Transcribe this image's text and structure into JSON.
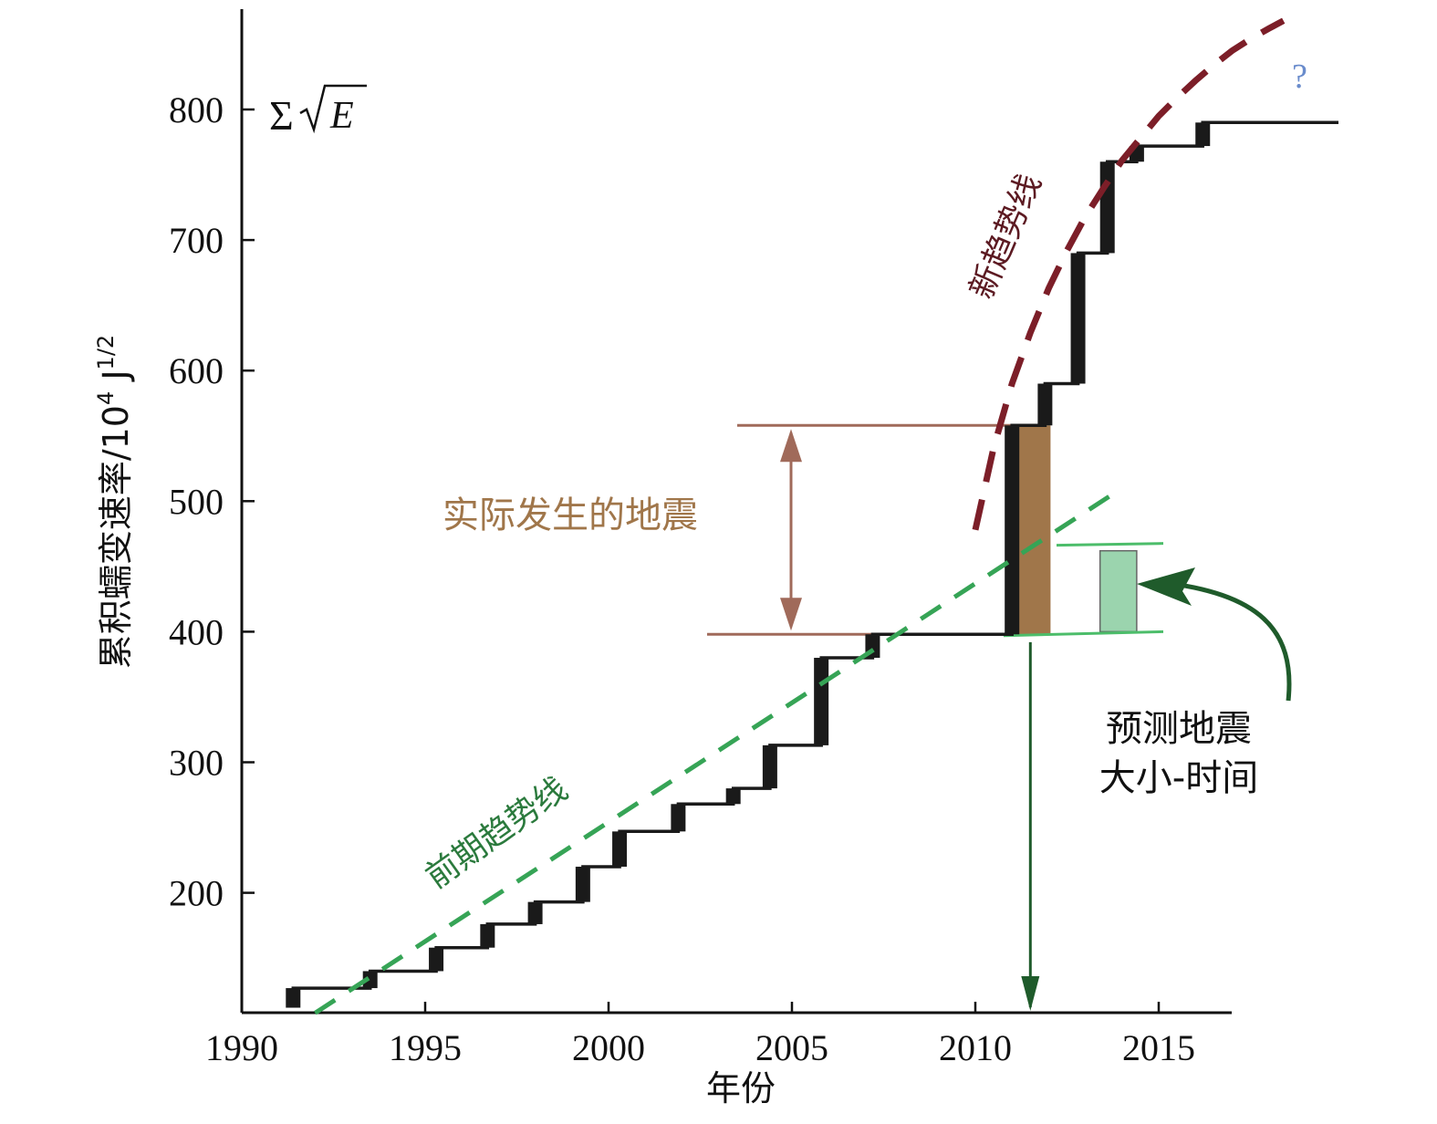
{
  "chart_data": {
    "type": "line",
    "xlabel": "年份",
    "ylabel": "累积蠕变速率/10",
    "ylabel_exp1": "4",
    "ylabel_unit": " J",
    "ylabel_exp2": "1/2",
    "formula": {
      "sigma": "Σ",
      "radicand": "E"
    },
    "xlim": [
      1990,
      2017
    ],
    "ylim": [
      110,
      870
    ],
    "x_ticks": [
      1990,
      1995,
      2000,
      2005,
      2010,
      2015
    ],
    "y_ticks": [
      200,
      300,
      400,
      500,
      600,
      700,
      800
    ],
    "grid": false,
    "series": [
      {
        "style": "step",
        "color": "#1a1a1a",
        "x": [
          1991.4,
          1991.4,
          1993.5,
          1993.5,
          1995.3,
          1995.3,
          1996.7,
          1996.7,
          1998.0,
          1998.0,
          1999.3,
          1999.3,
          2000.3,
          2000.3,
          2001.9,
          2001.9,
          2003.4,
          2003.4,
          2004.4,
          2004.4,
          2005.8,
          2005.8,
          2007.2,
          2007.2,
          2011.0,
          2011.0,
          2011.9,
          2011.9,
          2012.8,
          2012.8,
          2013.6,
          2013.6,
          2014.4,
          2014.4,
          2016.2,
          2016.2,
          2019.9
        ],
        "y": [
          112,
          127,
          127,
          140,
          140,
          158,
          158,
          176,
          176,
          193,
          193,
          220,
          220,
          247,
          247,
          268,
          268,
          280,
          280,
          313,
          313,
          380,
          380,
          398,
          398,
          558,
          558,
          590,
          590,
          690,
          690,
          760,
          760,
          772,
          772,
          790,
          790
        ]
      },
      {
        "name": "前期趋势线",
        "style": "dashed",
        "color": "#36a456",
        "x": [
          1992.0,
          2014.0
        ],
        "y": [
          108,
          510
        ]
      },
      {
        "name": "新趋势线",
        "style": "dashed",
        "color": "#7c1e28",
        "x": [
          2010.0,
          2010.5,
          2011.0,
          2011.5,
          2012.0,
          2012.5,
          2013.0,
          2013.5,
          2014.0,
          2014.5,
          2015.0,
          2015.5,
          2016.0,
          2016.5,
          2017.0,
          2017.5,
          2018.0,
          2018.4
        ],
        "y": [
          478,
          541,
          590,
          629,
          663,
          692,
          718,
          740,
          761,
          778,
          795,
          809,
          822,
          834,
          845,
          854,
          862,
          868
        ]
      }
    ],
    "annotations": {
      "actual_label": "实际发生的地震",
      "predict_label_line1": "预测地震",
      "predict_label_line2": "大小-时间",
      "question_mark": "?",
      "actual_range": [
        398,
        558
      ],
      "actual_bar": {
        "x": [
          2011.05,
          2012.05
        ],
        "y": [
          398,
          558
        ]
      },
      "predicted_box": {
        "x": [
          2013.4,
          2014.4
        ],
        "y": [
          400,
          462
        ]
      },
      "predicted_year": 2011.5,
      "colors": {
        "actual": "#a0764a",
        "actual_line": "#a06a5a",
        "predicted_fill": "#9bd4ae",
        "predicted_line": "#4cbd6a",
        "predicted_arrow": "#1f5b2b",
        "question_mark": "#6a8ccc"
      }
    }
  }
}
